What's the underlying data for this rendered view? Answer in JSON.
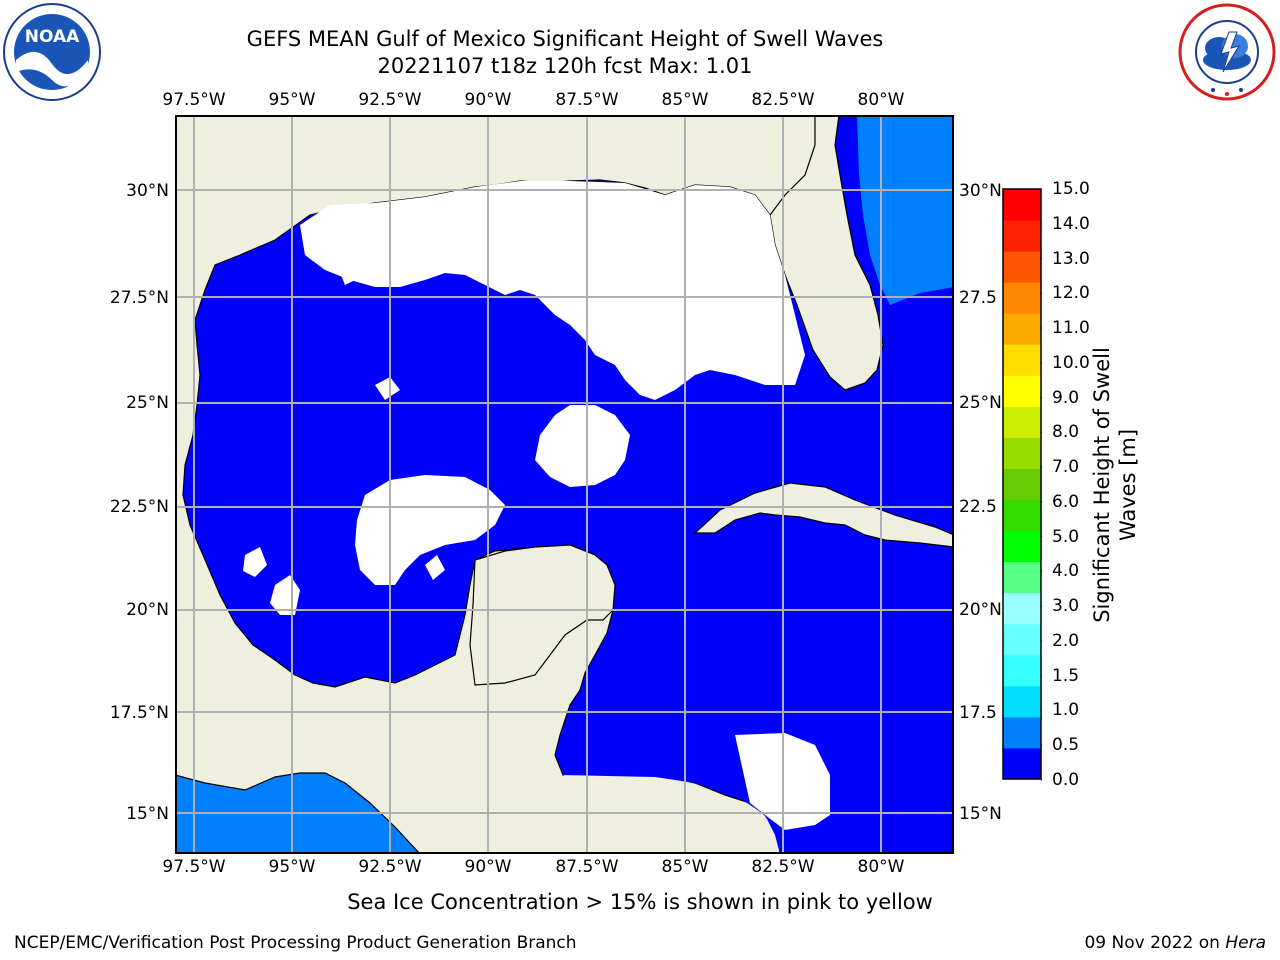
{
  "title_line1": "GEFS MEAN Gulf of Mexico Significant Height of Swell Waves",
  "title_line2": "20221107 t18z 120h fcst   Max: 1.01",
  "logo_left": {
    "icon": "noaa-logo",
    "text": "NOAA"
  },
  "logo_right": {
    "icon": "national-weather-service-logo"
  },
  "lon_ticks": [
    "97.5°W",
    "95°W",
    "92.5°W",
    "90°W",
    "87.5°W",
    "85°W",
    "82.5°W",
    "80°W"
  ],
  "lat_ticks_left": [
    "30°N",
    "27.5°N",
    "25°N",
    "22.5°N",
    "20°N",
    "17.5°N",
    "15°N"
  ],
  "lat_ticks_right": [
    "30°N",
    "27.5",
    "25°N",
    "22.5",
    "20°N",
    "17.5",
    "15°N"
  ],
  "colorbar": {
    "label_line1": "Significant Height of Swell",
    "label_line2": "Waves [m]",
    "ticks": [
      "15.0",
      "14.0",
      "13.0",
      "12.0",
      "11.0",
      "10.0",
      "9.0",
      "8.0",
      "7.0",
      "6.0",
      "5.0",
      "4.0",
      "3.0",
      "2.0",
      "1.5",
      "1.0",
      "0.5",
      "0.0"
    ],
    "colors": [
      "#0000ff",
      "#0080ff",
      "#00ddff",
      "#33ffff",
      "#66ffff",
      "#99ffff",
      "#55ff88",
      "#00ff00",
      "#33dd00",
      "#66cc00",
      "#99dd00",
      "#ccee00",
      "#ffff00",
      "#ffdd00",
      "#ffaa00",
      "#ff8800",
      "#ff5500",
      "#ff2200",
      "#ff0000"
    ]
  },
  "map_colors": {
    "land": "#efefdf",
    "swell_low": "#0000ff",
    "swell_mid": "#0080ff",
    "no_data": "#ffffff",
    "grid": "#b0b0b0"
  },
  "note": "Sea Ice Concentration > 15% is shown in pink to yellow",
  "footer_left": "NCEP/EMC/Verification Post Processing Product Generation Branch",
  "footer_date": "09 Nov 2022 on ",
  "footer_host": "Hera"
}
